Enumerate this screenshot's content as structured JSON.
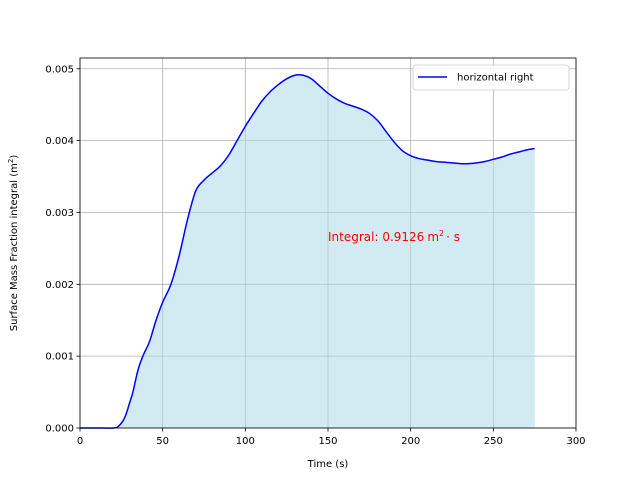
{
  "chart_data": {
    "type": "area",
    "title": "",
    "xlabel": "Time (s)",
    "ylabel": "Surface Mass Fraction integral (m",
    "ylabel_sup": "2",
    "ylabel_end": ")",
    "xlim": [
      0,
      300
    ],
    "ylim": [
      0,
      0.00515
    ],
    "xticks": [
      0,
      50,
      100,
      150,
      200,
      250,
      300
    ],
    "xtick_labels": [
      "0",
      "50",
      "100",
      "150",
      "200",
      "250",
      "300"
    ],
    "yticks": [
      0,
      0.001,
      0.002,
      0.003,
      0.004,
      0.005
    ],
    "ytick_labels": [
      "0.000",
      "0.001",
      "0.002",
      "0.003",
      "0.004",
      "0.005"
    ],
    "grid": true,
    "legend_position": "top-right",
    "line_color": "#0000ff",
    "fill_color": "#add8e6",
    "annotation": {
      "prefix": "Integral: ",
      "value": "0.9126",
      "unit": "m",
      "unit_sup": "2",
      "suffix": "· s",
      "color": "#ff0000",
      "x": 150,
      "y": 0.0026
    },
    "series": [
      {
        "name": "horizontal right",
        "x": [
          0,
          10,
          20,
          23,
          26,
          28,
          30,
          32,
          35,
          38,
          42,
          46,
          50,
          55,
          60,
          65,
          70,
          75,
          80,
          85,
          90,
          95,
          100,
          105,
          110,
          115,
          120,
          125,
          130,
          135,
          140,
          145,
          150,
          155,
          160,
          165,
          170,
          175,
          180,
          185,
          190,
          195,
          200,
          205,
          210,
          215,
          220,
          225,
          230,
          235,
          240,
          245,
          250,
          255,
          260,
          265,
          270,
          275
        ],
        "y": [
          0,
          0,
          0,
          2e-05,
          0.0001,
          0.0002,
          0.00035,
          0.0005,
          0.0008,
          0.001,
          0.0012,
          0.0015,
          0.00175,
          0.002,
          0.0024,
          0.0029,
          0.0033,
          0.00345,
          0.00355,
          0.00365,
          0.0038,
          0.004,
          0.0042,
          0.00438,
          0.00455,
          0.00468,
          0.00478,
          0.00486,
          0.00491,
          0.00491,
          0.00486,
          0.00476,
          0.00466,
          0.00458,
          0.00452,
          0.00448,
          0.00444,
          0.00438,
          0.00428,
          0.00413,
          0.00398,
          0.00386,
          0.00379,
          0.00375,
          0.00373,
          0.00371,
          0.0037,
          0.00369,
          0.00368,
          0.00368,
          0.00369,
          0.00371,
          0.00374,
          0.00377,
          0.00381,
          0.00384,
          0.00387,
          0.00389
        ]
      }
    ]
  }
}
